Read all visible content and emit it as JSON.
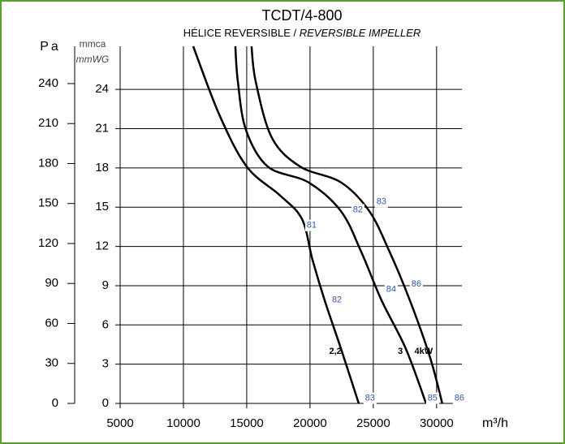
{
  "chart_data": {
    "type": "line",
    "title": "TCDT/4-800",
    "subtitle": [
      "HÉLICE REVERSIBLE / ",
      "REVERSIBLE IMPELLER"
    ],
    "x_label": "m³/h",
    "y_label": [
      "mmca",
      "mmWG"
    ],
    "y2_label": "Pa",
    "xlim": [
      5000,
      32000
    ],
    "xticks": [
      5000,
      10000,
      15000,
      20000,
      25000,
      30000
    ],
    "ylim": [
      0,
      27.3
    ],
    "yticks": [
      0,
      3,
      6,
      9,
      12,
      15,
      18,
      21,
      24
    ],
    "y2lim": [
      0,
      268
    ],
    "y2ticks": [
      0,
      30,
      60,
      90,
      120,
      150,
      180,
      210,
      240
    ],
    "grid": true,
    "series": [
      {
        "name": "2,2",
        "color": "#000000",
        "x": [
          10770,
          12820,
          15000,
          17630,
          19360,
          20190,
          21150,
          22440,
          23850
        ],
        "values": [
          27.3,
          22.1,
          18.1,
          15.9,
          14.1,
          11,
          7.9,
          4.2,
          0
        ]
      },
      {
        "name": "3",
        "color": "#000000",
        "x": [
          14100,
          14300,
          14940,
          16670,
          19870,
          22440,
          24040,
          25640,
          27560,
          29170
        ],
        "values": [
          27.3,
          24.6,
          20.9,
          18.1,
          16.9,
          14.7,
          11.6,
          7.9,
          4.2,
          0
        ]
      },
      {
        "name": "4kW",
        "color": "#000000",
        "x": [
          15380,
          15710,
          16990,
          19230,
          22440,
          24680,
          26280,
          27880,
          29490,
          30450
        ],
        "values": [
          27.3,
          24.6,
          20.3,
          18.1,
          16.9,
          14.7,
          11.6,
          7.9,
          3.5,
          0
        ]
      }
    ],
    "annotations": [
      {
        "text": "81",
        "x": 20130,
        "y": 13.6
      },
      {
        "text": "82",
        "x": 22120,
        "y": 7.9
      },
      {
        "text": "83",
        "x": 24740,
        "y": 0.4
      },
      {
        "text": "82",
        "x": 23780,
        "y": 14.8
      },
      {
        "text": "84",
        "x": 26410,
        "y": 8.7
      },
      {
        "text": "85",
        "x": 29680,
        "y": 0.4
      },
      {
        "text": "83",
        "x": 25640,
        "y": 15.4
      },
      {
        "text": "86",
        "x": 28400,
        "y": 9.1
      },
      {
        "text": "86",
        "x": 31800,
        "y": 0.4
      }
    ]
  }
}
